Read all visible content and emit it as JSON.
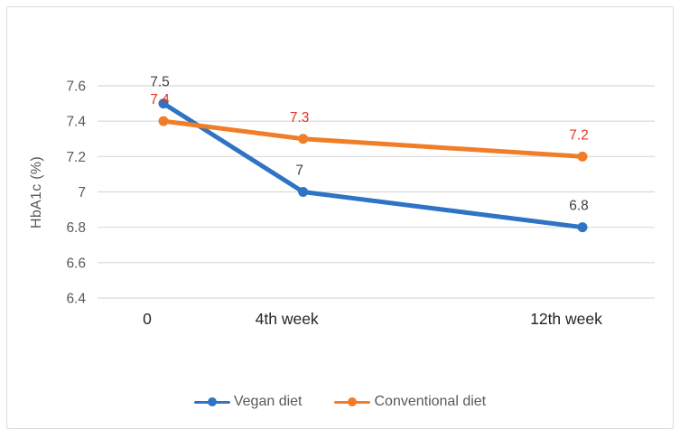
{
  "chart_data": {
    "type": "line",
    "title": "",
    "xlabel": "",
    "ylabel": "HbA1c (%)",
    "x": [
      0,
      4,
      12
    ],
    "x_tick_labels": [
      "0",
      "4th week",
      "12th week"
    ],
    "ylim": [
      6.4,
      7.6
    ],
    "yticks": [
      6.4,
      6.6,
      6.8,
      7.0,
      7.2,
      7.4,
      7.6
    ],
    "ytick_labels": [
      "6.4",
      "6.6",
      "6.8",
      "7",
      "7.2",
      "7.4",
      "7.6"
    ],
    "grid": true,
    "legend_position": "bottom",
    "series": [
      {
        "name": "Vegan diet",
        "color": "#2e73c4",
        "marker": "circle",
        "values": [
          7.5,
          7.0,
          6.8
        ],
        "data_labels": [
          "7.5",
          "7",
          "6.8"
        ],
        "data_label_color": "#404040"
      },
      {
        "name": "Conventional diet",
        "color": "#f07d28",
        "marker": "circle",
        "values": [
          7.4,
          7.3,
          7.2
        ],
        "data_labels": [
          "7.4",
          "7.3",
          "7.2"
        ],
        "data_label_color": "#e93323"
      }
    ],
    "styles": {
      "background": "#ffffff",
      "frame_border_color": "#dcdcdc",
      "gridline_color": "#d9d9d9",
      "ytick_label_color": "#595959",
      "xtick_label_color": "#262626",
      "ylabel_color": "#595959",
      "legend_text_color": "#595959"
    }
  }
}
